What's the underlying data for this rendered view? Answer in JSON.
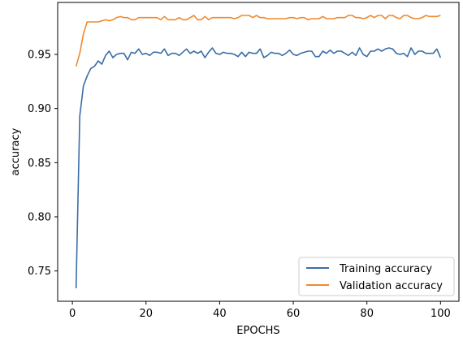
{
  "chart_data": {
    "type": "line",
    "title": "",
    "xlabel": "EPOCHS",
    "ylabel": "accuracy",
    "xlim": [
      -4,
      105
    ],
    "ylim": [
      0.722,
      0.998
    ],
    "xticks": [
      0,
      20,
      40,
      60,
      80,
      100
    ],
    "yticks": [
      0.75,
      0.8,
      0.85,
      0.9,
      0.95
    ],
    "ytick_labels": [
      "0.75",
      "0.80",
      "0.85",
      "0.90",
      "0.95"
    ],
    "grid": false,
    "legend_position": "lower-right",
    "x": [
      1,
      2,
      3,
      4,
      5,
      6,
      7,
      8,
      9,
      10,
      11,
      12,
      13,
      14,
      15,
      16,
      17,
      18,
      19,
      20,
      21,
      22,
      23,
      24,
      25,
      26,
      27,
      28,
      29,
      30,
      31,
      32,
      33,
      34,
      35,
      36,
      37,
      38,
      39,
      40,
      41,
      42,
      43,
      44,
      45,
      46,
      47,
      48,
      49,
      50,
      51,
      52,
      53,
      54,
      55,
      56,
      57,
      58,
      59,
      60,
      61,
      62,
      63,
      64,
      65,
      66,
      67,
      68,
      69,
      70,
      71,
      72,
      73,
      74,
      75,
      76,
      77,
      78,
      79,
      80,
      81,
      82,
      83,
      84,
      85,
      86,
      87,
      88,
      89,
      90,
      91,
      92,
      93,
      94,
      95,
      96,
      97,
      98,
      99,
      100
    ],
    "series": [
      {
        "name": "Training accuracy",
        "color": "#3a6ea5",
        "values": [
          0.734,
          0.893,
          0.921,
          0.93,
          0.937,
          0.939,
          0.944,
          0.941,
          0.949,
          0.953,
          0.947,
          0.95,
          0.951,
          0.951,
          0.945,
          0.952,
          0.951,
          0.955,
          0.95,
          0.951,
          0.949,
          0.952,
          0.952,
          0.951,
          0.955,
          0.949,
          0.951,
          0.951,
          0.949,
          0.952,
          0.955,
          0.951,
          0.953,
          0.951,
          0.953,
          0.947,
          0.952,
          0.956,
          0.951,
          0.95,
          0.952,
          0.951,
          0.951,
          0.95,
          0.948,
          0.952,
          0.948,
          0.952,
          0.951,
          0.951,
          0.955,
          0.947,
          0.949,
          0.952,
          0.951,
          0.951,
          0.949,
          0.951,
          0.954,
          0.95,
          0.949,
          0.951,
          0.952,
          0.953,
          0.953,
          0.948,
          0.948,
          0.953,
          0.951,
          0.954,
          0.951,
          0.953,
          0.953,
          0.951,
          0.949,
          0.952,
          0.949,
          0.956,
          0.95,
          0.948,
          0.953,
          0.953,
          0.955,
          0.953,
          0.955,
          0.956,
          0.955,
          0.951,
          0.95,
          0.951,
          0.948,
          0.956,
          0.95,
          0.953,
          0.953,
          0.951,
          0.951,
          0.951,
          0.955,
          0.947
        ]
      },
      {
        "name": "Validation accuracy",
        "color": "#ef8a2e",
        "values": [
          0.939,
          0.951,
          0.969,
          0.98,
          0.98,
          0.98,
          0.98,
          0.981,
          0.982,
          0.981,
          0.982,
          0.984,
          0.985,
          0.984,
          0.984,
          0.982,
          0.982,
          0.984,
          0.984,
          0.984,
          0.984,
          0.984,
          0.984,
          0.982,
          0.985,
          0.982,
          0.982,
          0.982,
          0.984,
          0.982,
          0.982,
          0.984,
          0.986,
          0.982,
          0.982,
          0.985,
          0.982,
          0.984,
          0.984,
          0.984,
          0.984,
          0.984,
          0.984,
          0.983,
          0.984,
          0.986,
          0.986,
          0.986,
          0.984,
          0.986,
          0.984,
          0.984,
          0.983,
          0.983,
          0.983,
          0.983,
          0.983,
          0.983,
          0.984,
          0.984,
          0.983,
          0.984,
          0.984,
          0.982,
          0.983,
          0.983,
          0.983,
          0.985,
          0.983,
          0.983,
          0.983,
          0.984,
          0.984,
          0.984,
          0.986,
          0.986,
          0.984,
          0.984,
          0.983,
          0.984,
          0.986,
          0.984,
          0.986,
          0.986,
          0.983,
          0.986,
          0.986,
          0.984,
          0.983,
          0.986,
          0.986,
          0.984,
          0.983,
          0.983,
          0.984,
          0.986,
          0.985,
          0.985,
          0.985,
          0.986
        ]
      }
    ]
  }
}
